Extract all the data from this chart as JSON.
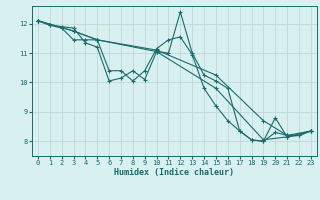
{
  "bg_color": "#d8f0f0",
  "grid_color": "#c0d8d8",
  "line_color": "#1a6b6b",
  "xlabel": "Humidex (Indice chaleur)",
  "xlim": [
    -0.5,
    23.5
  ],
  "ylim": [
    7.5,
    12.6
  ],
  "yticks": [
    8,
    9,
    10,
    11,
    12
  ],
  "xticks": [
    0,
    1,
    2,
    3,
    4,
    5,
    6,
    7,
    8,
    9,
    10,
    11,
    12,
    13,
    14,
    15,
    16,
    17,
    18,
    19,
    20,
    21,
    22,
    23
  ],
  "lines": [
    {
      "x": [
        0,
        1,
        2,
        3,
        4,
        5,
        6,
        7,
        8,
        9,
        10,
        11,
        12,
        13,
        14,
        15,
        16,
        17,
        18,
        19,
        20,
        21,
        22,
        23
      ],
      "y": [
        12.1,
        11.95,
        11.9,
        11.85,
        11.35,
        11.2,
        10.05,
        10.15,
        10.4,
        10.1,
        11.05,
        11.0,
        12.4,
        11.0,
        10.25,
        10.05,
        9.8,
        8.35,
        8.05,
        8.0,
        8.8,
        8.15,
        8.2,
        8.35
      ]
    },
    {
      "x": [
        0,
        1,
        2,
        3,
        4,
        5,
        6,
        7,
        8,
        9,
        10,
        11,
        12,
        13,
        14,
        15,
        16,
        17,
        18,
        19,
        20,
        21,
        22,
        23
      ],
      "y": [
        12.1,
        11.95,
        11.85,
        11.45,
        11.45,
        11.45,
        10.4,
        10.4,
        10.05,
        10.4,
        11.15,
        11.45,
        11.55,
        10.95,
        9.8,
        9.2,
        8.7,
        8.35,
        8.05,
        8.0,
        8.3,
        8.2,
        8.2,
        8.35
      ]
    },
    {
      "x": [
        0,
        3,
        5,
        10,
        15,
        19,
        21,
        23
      ],
      "y": [
        12.1,
        11.75,
        11.45,
        11.1,
        10.25,
        8.7,
        8.2,
        8.35
      ]
    },
    {
      "x": [
        0,
        3,
        5,
        10,
        15,
        19,
        21,
        23
      ],
      "y": [
        12.1,
        11.75,
        11.45,
        11.05,
        9.8,
        8.05,
        8.15,
        8.35
      ]
    }
  ],
  "figsize": [
    3.2,
    2.0
  ],
  "dpi": 100,
  "xlabel_fontsize": 6.0,
  "tick_fontsize": 5.0,
  "linewidth": 0.8,
  "markersize": 3.0,
  "markeredgewidth": 0.8
}
